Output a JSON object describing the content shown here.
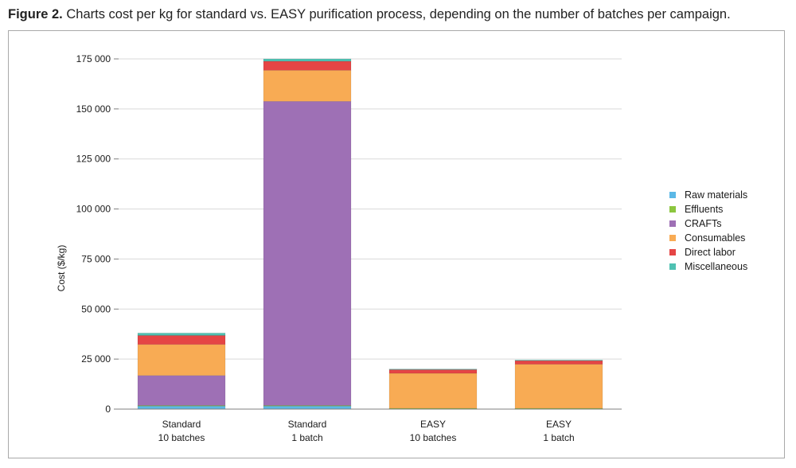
{
  "caption": {
    "label": "Figure 2.",
    "text": "Charts cost per kg for standard vs. EASY purification process, depending on the number of batches per campaign."
  },
  "chart_data": {
    "type": "bar",
    "stacked": true,
    "categories": [
      [
        "Standard",
        "10 batches"
      ],
      [
        "Standard",
        "1 batch"
      ],
      [
        "EASY",
        "10 batches"
      ],
      [
        "EASY",
        "1 batch"
      ]
    ],
    "ylabel": "Cost ($/kg)",
    "xlabel": "",
    "ylim": [
      0,
      175000
    ],
    "yticks": [
      0,
      25000,
      50000,
      75000,
      100000,
      125000,
      150000,
      175000
    ],
    "ytick_labels": [
      "0",
      "25 000",
      "50 000",
      "75 000",
      "100 000",
      "125 000",
      "150 000",
      "175 000"
    ],
    "grid": true,
    "legend_position": "right",
    "series": [
      {
        "name": "Raw materials",
        "color": "#5bb8e6",
        "values": [
          1500,
          1500,
          300,
          300
        ]
      },
      {
        "name": "Effluents",
        "color": "#8cc63f",
        "values": [
          300,
          300,
          100,
          100
        ]
      },
      {
        "name": "CRAFTs",
        "color": "#9e70b5",
        "values": [
          15000,
          152000,
          0,
          0
        ]
      },
      {
        "name": "Consumables",
        "color": "#f8ab54",
        "values": [
          15500,
          15500,
          17500,
          22000
        ]
      },
      {
        "name": "Direct labor",
        "color": "#e54545",
        "values": [
          4500,
          4500,
          2000,
          2000
        ]
      },
      {
        "name": "Miscellaneous",
        "color": "#4fc1b2",
        "values": [
          1200,
          1200,
          100,
          100
        ]
      }
    ]
  }
}
